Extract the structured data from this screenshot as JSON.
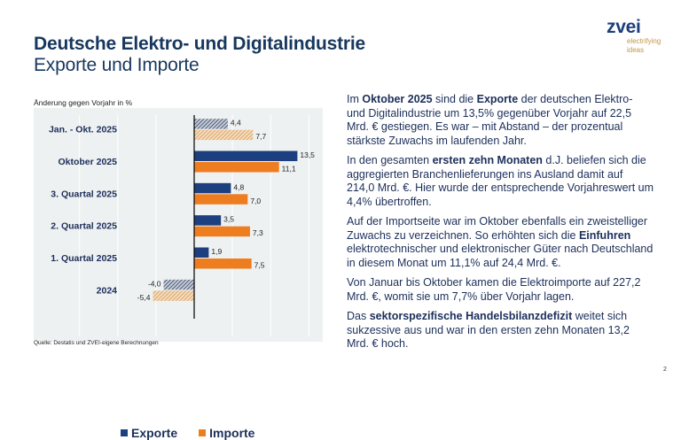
{
  "header": {
    "title": "Deutsche Elektro- und Digitalindustrie",
    "subtitle": "Exporte und Importe"
  },
  "logo": {
    "word": "zvei",
    "tagline_1": "electrifying",
    "tagline_2": "ideas"
  },
  "colors": {
    "exports": "#1c3f7f",
    "imports": "#ee7d1f",
    "exports_hatched": "#3b4f6e",
    "imports_hatched": "#e0aa6a",
    "chart_bg": "#eef1f2",
    "gridline": "#ffffff",
    "text_dark": "#1c2f5a"
  },
  "chart_data": {
    "type": "bar",
    "orientation": "horizontal",
    "ylabel": "Änderung gegen Vorjahr in %",
    "categories": [
      "Jan. - Okt. 2025",
      "Oktober 2025",
      "3. Quartal 2025",
      "2. Quartal 2025",
      "1. Quartal 2025",
      "2024"
    ],
    "series": [
      {
        "name": "Exporte",
        "values": [
          4.4,
          13.5,
          4.8,
          3.5,
          1.9,
          -4.0
        ],
        "labels": [
          "4,4",
          "13,5",
          "4,8",
          "3,5",
          "1,9",
          "-4,0"
        ],
        "hatched": [
          true,
          false,
          false,
          false,
          false,
          true
        ]
      },
      {
        "name": "Importe",
        "values": [
          7.7,
          11.1,
          7.0,
          7.3,
          7.5,
          -5.4
        ],
        "labels": [
          "7,7",
          "11,1",
          "7,0",
          "7,3",
          "7,5",
          "-5,4"
        ],
        "hatched": [
          true,
          false,
          false,
          false,
          false,
          true
        ]
      }
    ],
    "xlim": [
      -20,
      17.5
    ],
    "gridlines": [
      -15,
      -10,
      -5,
      5,
      10,
      15
    ],
    "grid": true,
    "legend": "bottom",
    "source": "Quelle: Destatis und ZVEI-eigene Berechnungen"
  },
  "text": {
    "p1": [
      {
        "t": "Im ",
        "b": false
      },
      {
        "t": "Oktober 2025",
        "b": true
      },
      {
        "t": " sind die ",
        "b": false
      },
      {
        "t": "Exporte",
        "b": true
      },
      {
        "t": " der deutschen Elektro- und Digitalindustrie um 13,5% gegenüber Vorjahr auf 22,5 Mrd. € gestiegen. Es war – mit Abstand – der prozentual stärkste Zuwachs im laufenden Jahr.",
        "b": false
      }
    ],
    "p2": [
      {
        "t": "In den gesamten ",
        "b": false
      },
      {
        "t": "ersten zehn Monaten",
        "b": true
      },
      {
        "t": " d.J. beliefen sich die aggregierten Branchenlieferungen ins Ausland damit auf 214,0 Mrd. €. Hier wurde der entsprechende Vorjahreswert um 4,4% übertroffen.",
        "b": false
      }
    ],
    "p3": [
      {
        "t": "Auf der Importseite war im Oktober ebenfalls ein zweistelliger Zuwachs zu verzeichnen. So erhöhten sich die ",
        "b": false
      },
      {
        "t": "Einfuhren",
        "b": true
      },
      {
        "t": " elektrotechnischer und elektronischer Güter nach Deutschland in diesem Monat um 11,1% auf 24,4 Mrd. €.",
        "b": false
      }
    ],
    "p4": [
      {
        "t": "Von Januar bis Oktober kamen die Elektroimporte auf 227,2 Mrd. €, womit sie um 7,7% über Vorjahr lagen.",
        "b": false
      }
    ],
    "p5": [
      {
        "t": "Das ",
        "b": false
      },
      {
        "t": "sektorspezifische Handelsbilanzdefizit",
        "b": true
      },
      {
        "t": " weitet sich sukzessive aus und war in den ersten zehn Monaten 13,2 Mrd. € hoch.",
        "b": false
      }
    ]
  },
  "page_number": "2"
}
